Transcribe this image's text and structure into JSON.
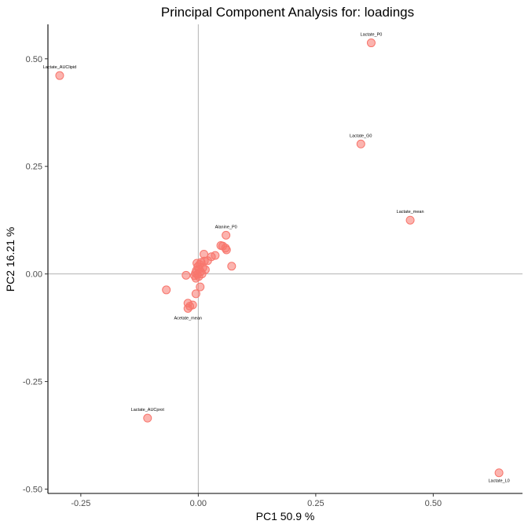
{
  "chart_data": {
    "type": "scatter",
    "title": "Principal Component Analysis for:  loadings",
    "xlabel": "PC1 50.9 %",
    "ylabel": "PC2 16.21 %",
    "xlim": [
      -0.32,
      0.69
    ],
    "ylim": [
      -0.51,
      0.58
    ],
    "x_ticks": [
      {
        "value": -0.25,
        "label": "-0.25"
      },
      {
        "value": 0.0,
        "label": "0.00"
      },
      {
        "value": 0.25,
        "label": "0.25"
      },
      {
        "value": 0.5,
        "label": "0.50"
      }
    ],
    "y_ticks": [
      {
        "value": -0.5,
        "label": "-0.50"
      },
      {
        "value": -0.25,
        "label": "-0.25"
      },
      {
        "value": 0.0,
        "label": "0.00"
      },
      {
        "value": 0.25,
        "label": "0.25"
      },
      {
        "value": 0.5,
        "label": "0.50"
      }
    ],
    "reference_lines": {
      "x": 0,
      "y": 0
    },
    "grid": false,
    "point_color": "#f8766d",
    "points": [
      {
        "x": 0.368,
        "y": 0.537,
        "label": "Lactate_P0"
      },
      {
        "x": -0.295,
        "y": 0.461,
        "label": "Lactate_AUClipid"
      },
      {
        "x": 0.346,
        "y": 0.302,
        "label": "Lactate_G0"
      },
      {
        "x": 0.451,
        "y": 0.125,
        "label": "Lactate_mean"
      },
      {
        "x": 0.059,
        "y": 0.09,
        "label": "Alanine_P0"
      },
      {
        "x": -0.022,
        "y": -0.08,
        "label": "Acetate_mean"
      },
      {
        "x": -0.108,
        "y": -0.335,
        "label": "Lactate_AUCprot"
      },
      {
        "x": 0.64,
        "y": -0.462,
        "label": "Lactate_L0"
      },
      {
        "x": 0.048,
        "y": 0.066,
        "label": ""
      },
      {
        "x": 0.052,
        "y": 0.065,
        "label": ""
      },
      {
        "x": 0.058,
        "y": 0.06,
        "label": ""
      },
      {
        "x": 0.06,
        "y": 0.056,
        "label": ""
      },
      {
        "x": 0.071,
        "y": 0.018,
        "label": ""
      },
      {
        "x": 0.036,
        "y": 0.043,
        "label": ""
      },
      {
        "x": 0.028,
        "y": 0.04,
        "label": ""
      },
      {
        "x": 0.012,
        "y": 0.046,
        "label": ""
      },
      {
        "x": 0.02,
        "y": 0.031,
        "label": ""
      },
      {
        "x": 0.013,
        "y": 0.03,
        "label": ""
      },
      {
        "x": 0.006,
        "y": 0.027,
        "label": ""
      },
      {
        "x": -0.003,
        "y": 0.025,
        "label": ""
      },
      {
        "x": 0.003,
        "y": 0.022,
        "label": ""
      },
      {
        "x": 0.01,
        "y": 0.015,
        "label": ""
      },
      {
        "x": 0.002,
        "y": 0.011,
        "label": ""
      },
      {
        "x": -0.004,
        "y": 0.008,
        "label": ""
      },
      {
        "x": 0.005,
        "y": 0.005,
        "label": ""
      },
      {
        "x": -0.006,
        "y": 0.002,
        "label": ""
      },
      {
        "x": -0.002,
        "y": -0.001,
        "label": ""
      },
      {
        "x": -0.008,
        "y": -0.004,
        "label": ""
      },
      {
        "x": 0.001,
        "y": -0.006,
        "label": ""
      },
      {
        "x": -0.005,
        "y": -0.01,
        "label": ""
      },
      {
        "x": -0.026,
        "y": -0.003,
        "label": ""
      },
      {
        "x": 0.004,
        "y": -0.03,
        "label": ""
      },
      {
        "x": -0.005,
        "y": -0.046,
        "label": ""
      },
      {
        "x": -0.068,
        "y": -0.037,
        "label": ""
      },
      {
        "x": -0.022,
        "y": -0.068,
        "label": ""
      },
      {
        "x": -0.012,
        "y": -0.072,
        "label": ""
      },
      {
        "x": -0.018,
        "y": -0.075,
        "label": ""
      },
      {
        "x": 0.015,
        "y": 0.01,
        "label": ""
      },
      {
        "x": 0.008,
        "y": 0.0,
        "label": ""
      },
      {
        "x": -0.001,
        "y": 0.017,
        "label": ""
      }
    ]
  }
}
